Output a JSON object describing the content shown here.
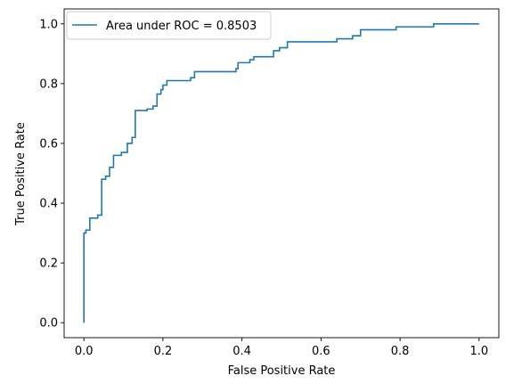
{
  "chart_data": {
    "type": "line",
    "title": "",
    "xlabel": "False Positive Rate",
    "ylabel": "True Positive Rate",
    "xlim": [
      -0.05,
      1.05
    ],
    "ylim": [
      -0.05,
      1.05
    ],
    "xticks": [
      0.0,
      0.2,
      0.4,
      0.6,
      0.8,
      1.0
    ],
    "xtick_labels": [
      "0.0",
      "0.2",
      "0.4",
      "0.6",
      "0.8",
      "1.0"
    ],
    "yticks": [
      0.0,
      0.2,
      0.4,
      0.6,
      0.8,
      1.0
    ],
    "ytick_labels": [
      "0.0",
      "0.2",
      "0.4",
      "0.6",
      "0.8",
      "1.0"
    ],
    "grid": false,
    "legend_position": "top-left",
    "series_color": "#1f77b4",
    "series": [
      {
        "name": "Area under ROC = 0.8503",
        "x": [
          0.0,
          0.0,
          0.005,
          0.005,
          0.015,
          0.015,
          0.035,
          0.035,
          0.045,
          0.045,
          0.055,
          0.055,
          0.065,
          0.065,
          0.075,
          0.075,
          0.095,
          0.095,
          0.11,
          0.11,
          0.122,
          0.122,
          0.13,
          0.13,
          0.16,
          0.16,
          0.175,
          0.175,
          0.185,
          0.185,
          0.195,
          0.195,
          0.2,
          0.2,
          0.21,
          0.21,
          0.27,
          0.27,
          0.28,
          0.28,
          0.385,
          0.385,
          0.39,
          0.39,
          0.42,
          0.42,
          0.43,
          0.43,
          0.48,
          0.48,
          0.495,
          0.495,
          0.515,
          0.515,
          0.64,
          0.64,
          0.68,
          0.68,
          0.7,
          0.7,
          0.79,
          0.79,
          0.885,
          0.885,
          1.0
        ],
        "y": [
          0.0,
          0.3,
          0.3,
          0.31,
          0.31,
          0.35,
          0.35,
          0.36,
          0.36,
          0.48,
          0.48,
          0.49,
          0.49,
          0.52,
          0.52,
          0.56,
          0.56,
          0.57,
          0.57,
          0.6,
          0.6,
          0.62,
          0.62,
          0.71,
          0.71,
          0.715,
          0.715,
          0.725,
          0.725,
          0.765,
          0.765,
          0.78,
          0.78,
          0.795,
          0.795,
          0.81,
          0.81,
          0.82,
          0.82,
          0.84,
          0.84,
          0.85,
          0.85,
          0.87,
          0.87,
          0.88,
          0.88,
          0.89,
          0.89,
          0.91,
          0.91,
          0.92,
          0.92,
          0.94,
          0.94,
          0.95,
          0.95,
          0.96,
          0.96,
          0.98,
          0.98,
          0.99,
          0.99,
          1.0,
          1.0
        ]
      }
    ]
  }
}
